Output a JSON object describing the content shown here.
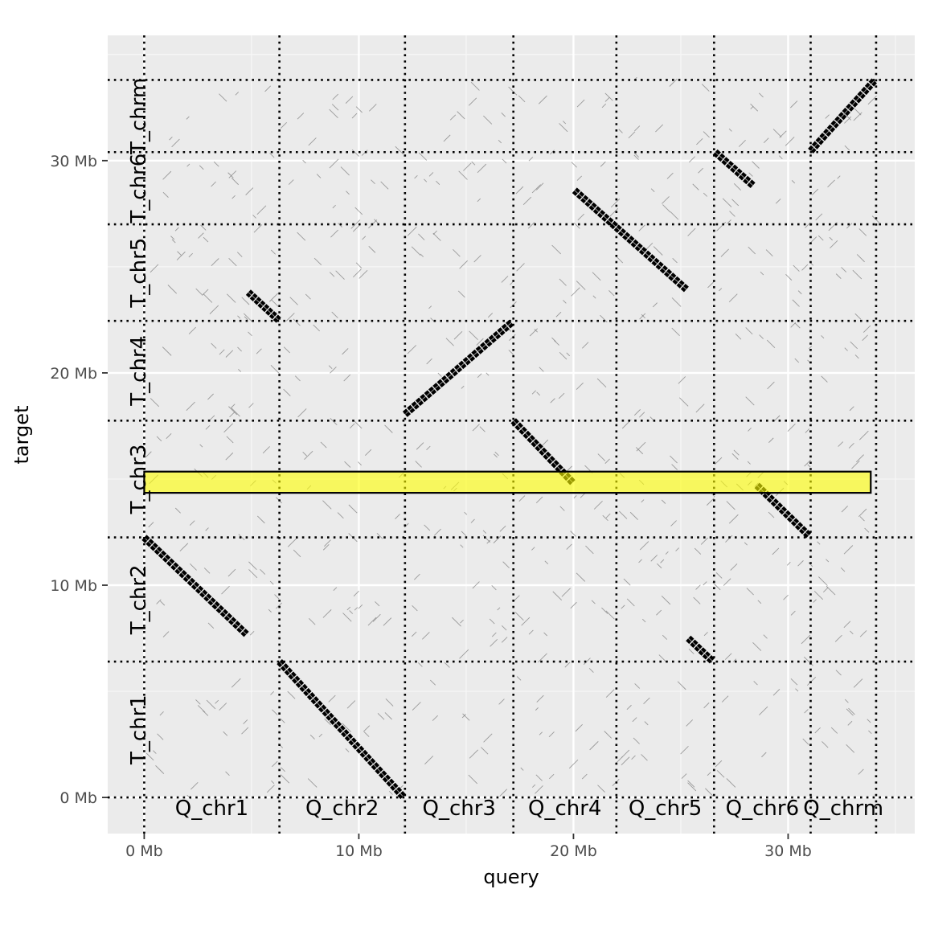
{
  "chart_data": {
    "type": "scatter",
    "title": "",
    "xlabel": "query",
    "ylabel": "target",
    "xlim": [
      -1.7,
      35.9
    ],
    "ylim": [
      -1.7,
      35.9
    ],
    "grid": true,
    "panel_background": "#ebebeb",
    "x_ticks": [
      {
        "value": 0,
        "label": "0 Mb"
      },
      {
        "value": 10,
        "label": "10 Mb"
      },
      {
        "value": 20,
        "label": "20 Mb"
      },
      {
        "value": 30,
        "label": "30 Mb"
      }
    ],
    "y_ticks": [
      {
        "value": 0,
        "label": "0 Mb"
      },
      {
        "value": 10,
        "label": "10 Mb"
      },
      {
        "value": 20,
        "label": "20 Mb"
      },
      {
        "value": 30,
        "label": "30 Mb"
      }
    ],
    "query_chromosomes": [
      {
        "name": "Q_chr1",
        "start": 0,
        "end": 6.3
      },
      {
        "name": "Q_chr2",
        "start": 6.3,
        "end": 12.15
      },
      {
        "name": "Q_chr3",
        "start": 12.15,
        "end": 17.2
      },
      {
        "name": "Q_chr4",
        "start": 17.2,
        "end": 22.0
      },
      {
        "name": "Q_chr5",
        "start": 22.0,
        "end": 26.55
      },
      {
        "name": "Q_chr6",
        "start": 26.55,
        "end": 31.05
      },
      {
        "name": "Q_chrm",
        "start": 31.05,
        "end": 34.1
      }
    ],
    "target_chromosomes": [
      {
        "name": "T_chr1",
        "start": 0,
        "end": 6.4
      },
      {
        "name": "T_chr2",
        "start": 6.4,
        "end": 12.25
      },
      {
        "name": "T_chr3",
        "start": 12.25,
        "end": 17.75
      },
      {
        "name": "T_chr4",
        "start": 17.75,
        "end": 22.45
      },
      {
        "name": "T_chr5",
        "start": 22.45,
        "end": 27.0
      },
      {
        "name": "T_chr6",
        "start": 27.0,
        "end": 30.4
      },
      {
        "name": "T_chrm",
        "start": 30.4,
        "end": 33.8
      }
    ],
    "alignments": [
      {
        "x1": 6.3,
        "y1": 6.4,
        "x2": 12.1,
        "y2": 0.0
      },
      {
        "x1": 0.0,
        "y1": 12.25,
        "x2": 4.8,
        "y2": 7.65
      },
      {
        "x1": 4.85,
        "y1": 23.8,
        "x2": 6.3,
        "y2": 22.45
      },
      {
        "x1": 12.15,
        "y1": 18.05,
        "x2": 17.15,
        "y2": 22.4
      },
      {
        "x1": 17.2,
        "y1": 17.75,
        "x2": 20.0,
        "y2": 14.8
      },
      {
        "x1": 20.05,
        "y1": 28.6,
        "x2": 25.3,
        "y2": 23.9
      },
      {
        "x1": 25.35,
        "y1": 7.5,
        "x2": 26.5,
        "y2": 6.4
      },
      {
        "x1": 26.6,
        "y1": 30.4,
        "x2": 28.4,
        "y2": 28.8
      },
      {
        "x1": 28.55,
        "y1": 14.7,
        "x2": 31.0,
        "y2": 12.3
      },
      {
        "x1": 31.05,
        "y1": 30.45,
        "x2": 34.05,
        "y2": 33.8
      }
    ],
    "highlight": {
      "xmin": 0.0,
      "xmax": 33.85,
      "ymin": 14.35,
      "ymax": 15.35,
      "fill": "#ffff00"
    }
  }
}
